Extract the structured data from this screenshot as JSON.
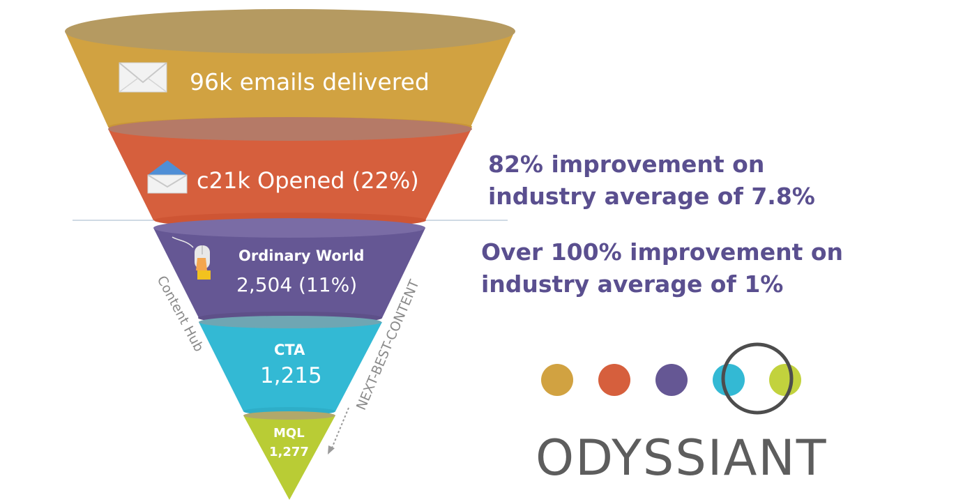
{
  "funnel": {
    "stages": [
      {
        "id": "emails",
        "label": "96k emails delivered",
        "color": "#d1a241",
        "icon": "envelope-closed-icon"
      },
      {
        "id": "opened",
        "label": "c21k Opened (22%)",
        "color": "#d65f3d",
        "icon": "envelope-open-icon"
      },
      {
        "id": "ordinary_world",
        "title": "Ordinary World",
        "value": "2,504  (11%)",
        "color": "#655794",
        "icon": "mouse-click-icon"
      },
      {
        "id": "cta",
        "title": "CTA",
        "value": "1,215",
        "color": "#33b9d4"
      },
      {
        "id": "mql",
        "title": "MQL",
        "value": "1,277",
        "color": "#b9cc35"
      }
    ],
    "side_label_left": "Content Hub",
    "side_label_right": "NEXT-BEST-CONTENT"
  },
  "callouts": {
    "opened": {
      "line1": "82% improvement on",
      "line2": "industry average of 7.8%"
    },
    "clicks": {
      "line1": "Over 100% improvement on",
      "line2": "industry average of 1%"
    }
  },
  "brand": {
    "name": "ODYSSIANT",
    "dot_colors": [
      "#d1a241",
      "#d65f3d",
      "#655794",
      "#33b9d4",
      "#c2d23d"
    ],
    "text_color": "#5d5d5d"
  }
}
